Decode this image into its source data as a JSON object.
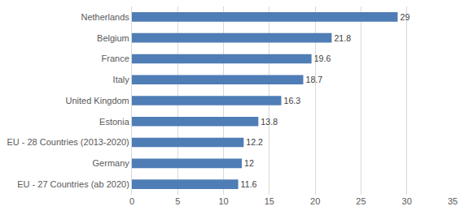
{
  "chart_data": {
    "type": "bar",
    "orientation": "horizontal",
    "categories": [
      "Netherlands",
      "Belgium",
      "France",
      "Italy",
      "United Kingdom",
      "Estonia",
      "EU - 28 Countries (2013-2020)",
      "Germany",
      "EU - 27 Countries (ab 2020)"
    ],
    "values": [
      29,
      21.8,
      19.6,
      18.7,
      16.3,
      13.8,
      12.2,
      12,
      11.6
    ],
    "color": "#4f7db5",
    "xlim": [
      0,
      35
    ],
    "xticks": [
      0,
      5,
      10,
      15,
      20,
      25,
      30,
      35
    ],
    "grid": true,
    "data_labels": true
  }
}
